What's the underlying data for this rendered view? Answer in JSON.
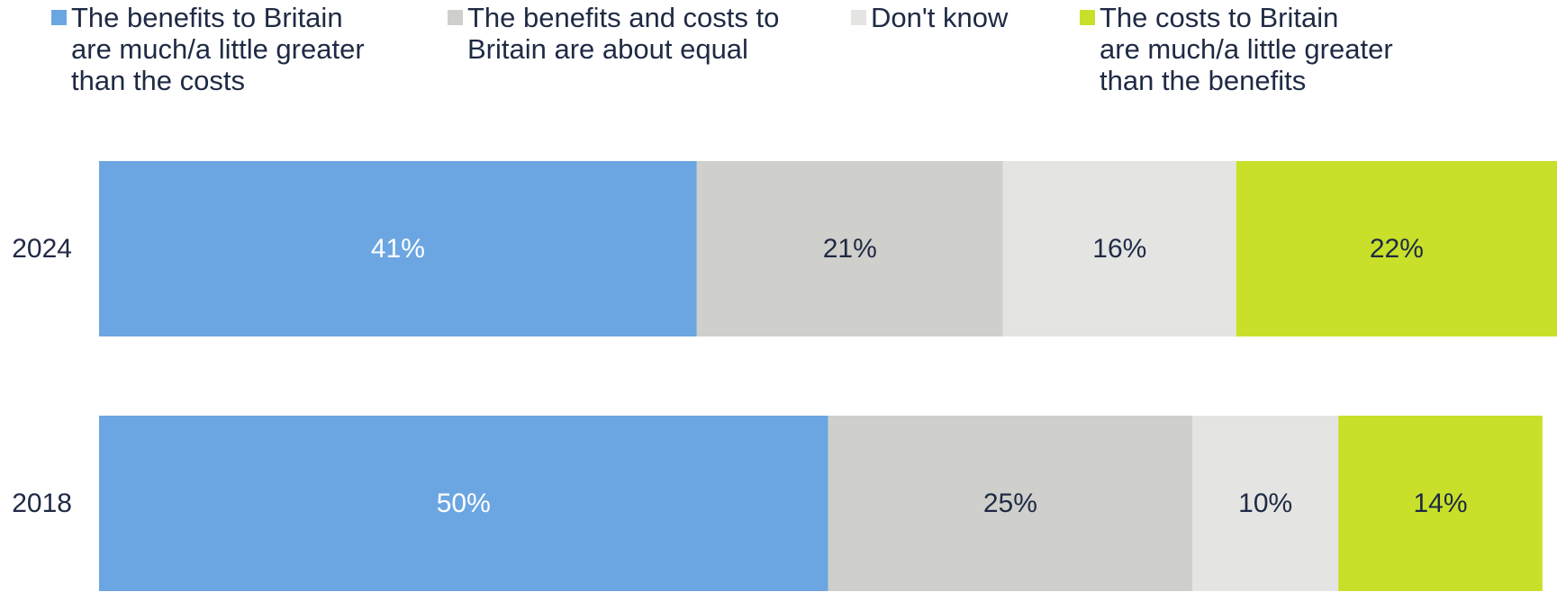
{
  "chart_data": {
    "type": "bar",
    "orientation": "horizontal",
    "stacked": true,
    "categories": [
      "2024",
      "2018"
    ],
    "series": [
      {
        "name": "The benefits to Britain are much/a little greater than the costs",
        "values": [
          41,
          50
        ],
        "color": "#6ca6e2",
        "label_color": "#ffffff"
      },
      {
        "name": "The benefits and costs to Britain are about equal",
        "values": [
          21,
          25
        ],
        "color": "#cfcfcb",
        "label_color": "#1f2a44"
      },
      {
        "name": "Don't know",
        "values": [
          16,
          10
        ],
        "color": "#e4e4e2",
        "label_color": "#1f2a44"
      },
      {
        "name": "The costs to Britain are much/a little greater than the benefits",
        "values": [
          22,
          14
        ],
        "color": "#c8e02a",
        "label_color": "#1f2a44"
      }
    ],
    "value_suffix": "%",
    "xlim": [
      0,
      100
    ],
    "legend_position": "top",
    "grid": false
  },
  "legend": {
    "items": [
      {
        "label": "The benefits to Britain\nare much/a little greater\nthan the costs"
      },
      {
        "label": "The benefits and costs to\nBritain are about equal"
      },
      {
        "label": "Don't know"
      },
      {
        "label": "The costs to Britain\nare much/a little greater\nthan the benefits"
      }
    ]
  }
}
